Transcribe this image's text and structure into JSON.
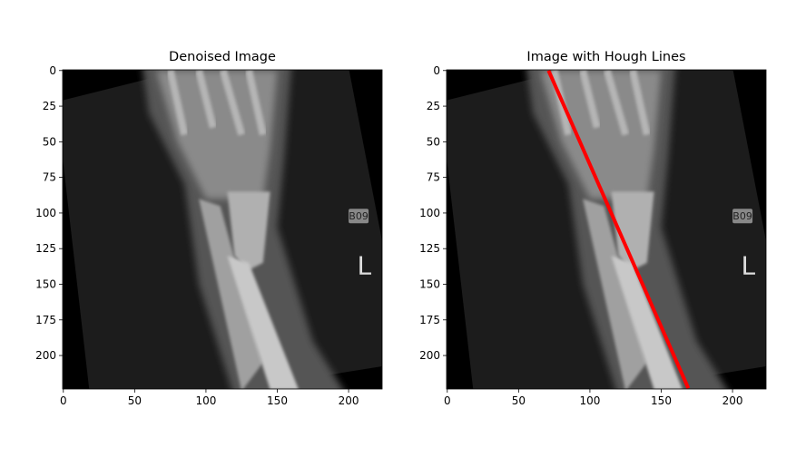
{
  "chart_data": [
    {
      "type": "image",
      "title": "Denoised Image",
      "image_text": [
        "B09",
        "L"
      ],
      "xlim": [
        -0.5,
        223.5
      ],
      "ylim": [
        223.5,
        -0.5
      ],
      "xticks": [
        0,
        50,
        100,
        150,
        200
      ],
      "yticks": [
        0,
        25,
        50,
        75,
        100,
        125,
        150,
        175,
        200
      ]
    },
    {
      "type": "image",
      "title": "Image with Hough Lines",
      "image_text": [
        "B09",
        "L"
      ],
      "xlim": [
        -0.5,
        223.5
      ],
      "ylim": [
        223.5,
        -0.5
      ],
      "xticks": [
        0,
        50,
        100,
        150,
        200
      ],
      "yticks": [
        0,
        25,
        50,
        75,
        100,
        125,
        150,
        175,
        200
      ],
      "lines": [
        {
          "x": [
            71,
            169
          ],
          "y": [
            0,
            223
          ],
          "color": "#ff0000"
        }
      ]
    }
  ]
}
